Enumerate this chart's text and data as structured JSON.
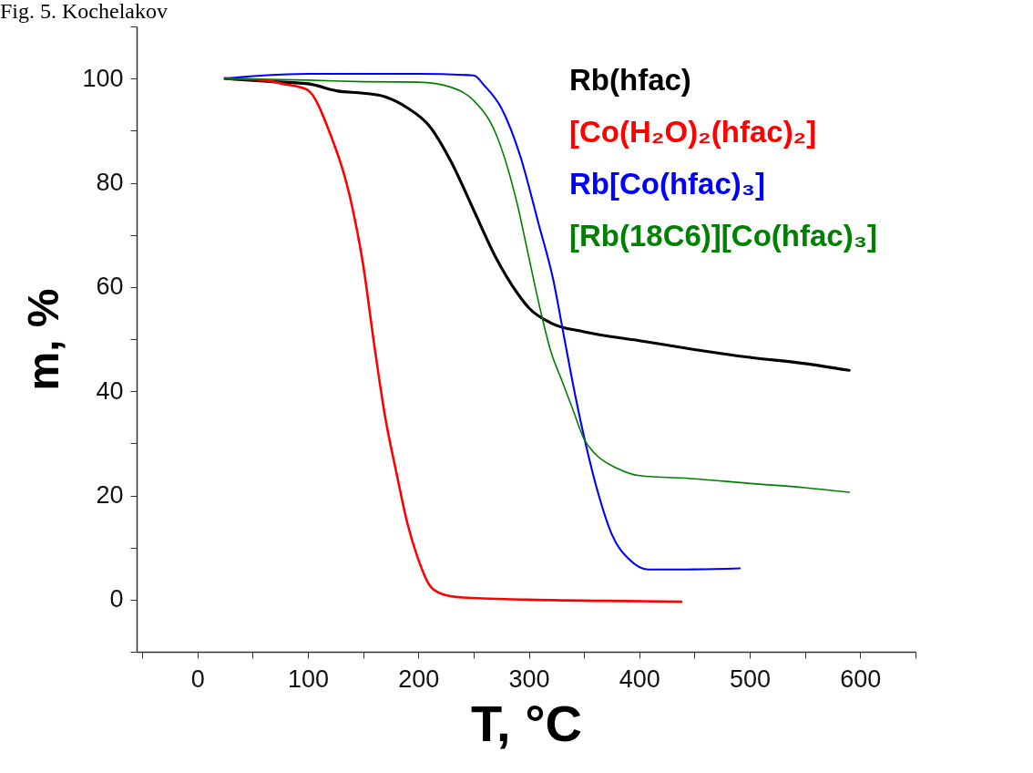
{
  "chart_data": {
    "type": "line",
    "xlabel": "T, °C",
    "ylabel": "m, %",
    "annotations": [
      "Fig. 5. Kochelakov"
    ],
    "xlim": [
      -55,
      650
    ],
    "ylim": [
      -10,
      110
    ],
    "xticks": [
      {
        "value": -50,
        "label": null
      },
      0,
      {
        "value": 50,
        "label": null
      },
      100,
      {
        "value": 150,
        "label": null
      },
      200,
      {
        "value": 250,
        "label": null
      },
      300,
      {
        "value": 350,
        "label": null
      },
      400,
      {
        "value": 450,
        "label": null
      },
      500,
      {
        "value": 550,
        "label": null
      },
      600,
      {
        "value": 650,
        "label": null
      }
    ],
    "yticks": [
      {
        "value": -10,
        "label": null
      },
      0,
      {
        "value": 10,
        "label": null
      },
      20,
      {
        "value": 30,
        "label": null
      },
      40,
      {
        "value": 50,
        "label": null
      },
      60,
      {
        "value": 70,
        "label": null
      },
      80,
      {
        "value": 90,
        "label": null
      },
      100,
      {
        "value": 110,
        "label": null
      }
    ],
    "grid": false,
    "legend": "top right",
    "marker": "none",
    "line_style": "solid",
    "series": [
      {
        "name": "Rb(hfac)",
        "color": "#000000",
        "x": [
          25,
          60,
          100,
          127,
          150,
          170,
          190,
          210,
          230,
          250,
          270,
          290,
          300,
          320,
          350,
          400,
          450,
          500,
          550,
          590
        ],
        "values": [
          100,
          99.5,
          99,
          97.6,
          97.2,
          96.5,
          94.4,
          90.9,
          83.9,
          74.8,
          65.7,
          58.7,
          56,
          53.1,
          51.4,
          49.7,
          48,
          46.5,
          45.3,
          44
        ]
      },
      {
        "name": "[Co(H₂O)₂(hfac)₂]",
        "color": "#ff0000",
        "x": [
          25,
          60,
          77,
          99,
          120,
          140,
          150,
          160,
          170,
          180,
          190,
          200,
          210,
          220,
          240,
          300,
          400,
          438
        ],
        "values": [
          100,
          99.7,
          99,
          97.9,
          89.5,
          75.5,
          64.3,
          49,
          35,
          24.5,
          14.7,
          7.7,
          2.8,
          1.2,
          0.4,
          0,
          -0.3,
          -0.4
        ]
      },
      {
        "name": "Rb[Co(hfac)₃]",
        "color": "#0000ff",
        "x": [
          25,
          60,
          100,
          200,
          250,
          260,
          275,
          292,
          309,
          322,
          332,
          342,
          352,
          362,
          375,
          391,
          408,
          441,
          491
        ],
        "values": [
          100,
          100.6,
          100.9,
          100.9,
          100.6,
          98.6,
          94.4,
          85.3,
          72,
          61.5,
          50.3,
          39.2,
          29.4,
          21,
          12.6,
          7.7,
          5.8,
          5.8,
          6
        ]
      },
      {
        "name": "[Rb(18C6)][Co(hfac)₃]",
        "color": "#008000",
        "x": [
          25,
          100,
          150,
          200,
          230,
          250,
          270,
          290,
          300,
          310,
          320,
          330,
          340,
          350,
          360,
          380,
          400,
          450,
          500,
          550,
          590
        ],
        "values": [
          100,
          99.7,
          99.4,
          99.3,
          98.3,
          95.8,
          89.5,
          75.5,
          65.7,
          56,
          47.6,
          42,
          36.4,
          30.8,
          28,
          25.2,
          23.8,
          23.2,
          22.3,
          21.5,
          20.6
        ]
      }
    ]
  }
}
